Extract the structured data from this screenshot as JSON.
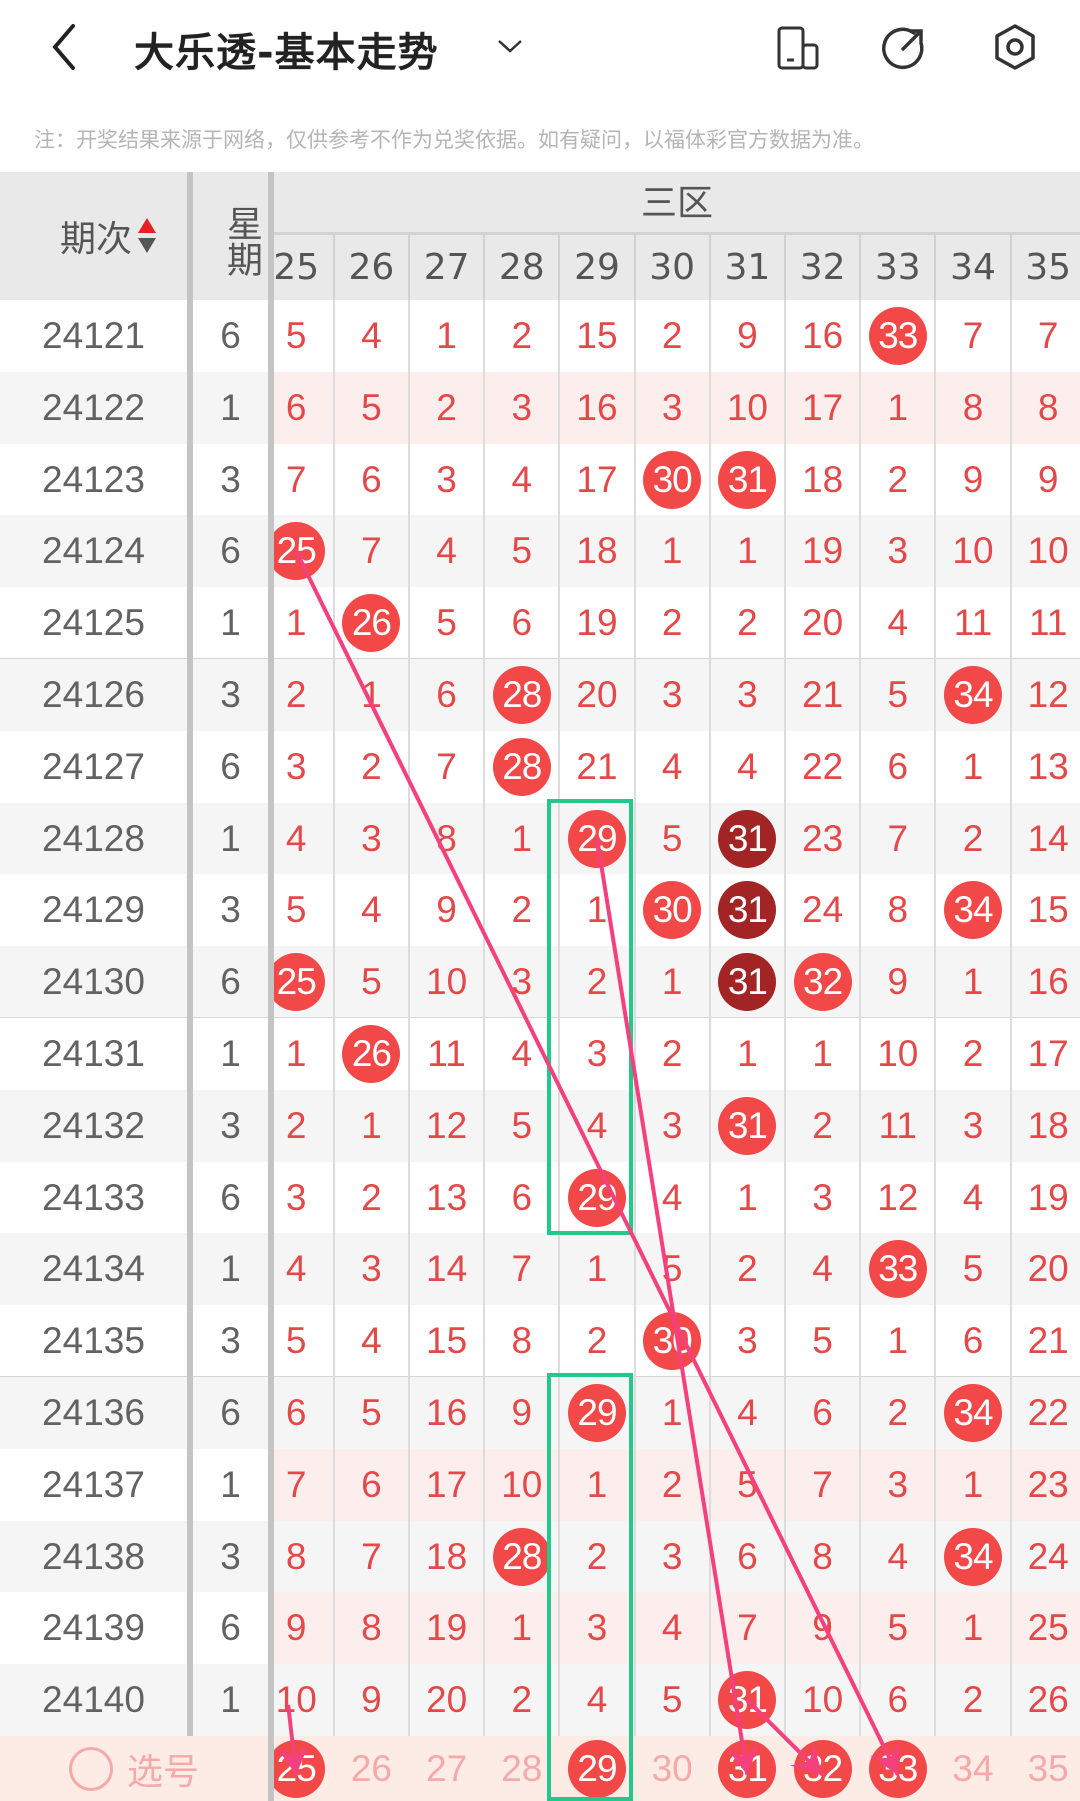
{
  "header": {
    "title": "大乐透-基本走势",
    "back_icon": "chevron-left-icon",
    "dropdown_icon": "chevron-down-icon",
    "actions": [
      {
        "name": "screen-rotate-icon"
      },
      {
        "name": "share-icon"
      },
      {
        "name": "settings-icon"
      }
    ]
  },
  "note": "注：开奖结果来源于网络，仅供参考不作为兑奖依据。如有疑问，以福体彩官方数据为准。",
  "table": {
    "period_header": "期次",
    "week_header": "星期",
    "zone_header": "三区",
    "columns": [
      25,
      26,
      27,
      28,
      29,
      30,
      31,
      32,
      33,
      34,
      35
    ],
    "rows": [
      {
        "period": "24121",
        "week": "6",
        "cells": [
          5,
          4,
          1,
          2,
          15,
          2,
          9,
          16,
          33,
          7,
          7
        ]
      },
      {
        "period": "24122",
        "week": "1",
        "cells": [
          6,
          5,
          2,
          3,
          16,
          3,
          10,
          17,
          1,
          8,
          8
        ],
        "highlight": true
      },
      {
        "period": "24123",
        "week": "3",
        "cells": [
          7,
          6,
          3,
          4,
          17,
          30,
          31,
          18,
          2,
          9,
          9
        ]
      },
      {
        "period": "24124",
        "week": "6",
        "cells": [
          25,
          7,
          4,
          5,
          18,
          1,
          1,
          19,
          3,
          10,
          10
        ]
      },
      {
        "period": "24125",
        "week": "1",
        "cells": [
          1,
          26,
          5,
          6,
          19,
          2,
          2,
          20,
          4,
          11,
          11
        ]
      },
      {
        "period": "24126",
        "week": "3",
        "cells": [
          2,
          1,
          6,
          28,
          20,
          3,
          3,
          21,
          5,
          34,
          12
        ]
      },
      {
        "period": "24127",
        "week": "6",
        "cells": [
          3,
          2,
          7,
          28,
          21,
          4,
          4,
          22,
          6,
          1,
          13
        ]
      },
      {
        "period": "24128",
        "week": "1",
        "cells": [
          4,
          3,
          8,
          1,
          29,
          5,
          31,
          23,
          7,
          2,
          14
        ],
        "dark": [
          31
        ]
      },
      {
        "period": "24129",
        "week": "3",
        "cells": [
          5,
          4,
          9,
          2,
          1,
          30,
          31,
          24,
          8,
          34,
          15
        ],
        "dark": [
          31
        ]
      },
      {
        "period": "24130",
        "week": "6",
        "cells": [
          25,
          5,
          10,
          3,
          2,
          1,
          31,
          32,
          9,
          1,
          16
        ],
        "dark": [
          31
        ]
      },
      {
        "period": "24131",
        "week": "1",
        "cells": [
          1,
          26,
          11,
          4,
          3,
          2,
          1,
          1,
          10,
          2,
          17
        ]
      },
      {
        "period": "24132",
        "week": "3",
        "cells": [
          2,
          1,
          12,
          5,
          4,
          3,
          31,
          2,
          11,
          3,
          18
        ]
      },
      {
        "period": "24133",
        "week": "6",
        "cells": [
          3,
          2,
          13,
          6,
          29,
          4,
          1,
          3,
          12,
          4,
          19
        ]
      },
      {
        "period": "24134",
        "week": "1",
        "cells": [
          4,
          3,
          14,
          7,
          1,
          5,
          2,
          4,
          33,
          5,
          20
        ]
      },
      {
        "period": "24135",
        "week": "3",
        "cells": [
          5,
          4,
          15,
          8,
          2,
          30,
          3,
          5,
          1,
          6,
          21
        ]
      },
      {
        "period": "24136",
        "week": "6",
        "cells": [
          6,
          5,
          16,
          9,
          29,
          1,
          4,
          6,
          2,
          34,
          22
        ]
      },
      {
        "period": "24137",
        "week": "1",
        "cells": [
          7,
          6,
          17,
          10,
          1,
          2,
          5,
          7,
          3,
          1,
          23
        ],
        "highlight": true
      },
      {
        "period": "24138",
        "week": "3",
        "cells": [
          8,
          7,
          18,
          28,
          2,
          3,
          6,
          8,
          4,
          34,
          24
        ]
      },
      {
        "period": "24139",
        "week": "6",
        "cells": [
          9,
          8,
          19,
          1,
          3,
          4,
          7,
          9,
          5,
          1,
          25
        ],
        "highlight": true
      },
      {
        "period": "24140",
        "week": "1",
        "cells": [
          10,
          9,
          20,
          2,
          4,
          5,
          31,
          10,
          6,
          2,
          26
        ]
      }
    ],
    "select_row": {
      "label": "选号",
      "selected": [
        25,
        29,
        31,
        32,
        33
      ]
    },
    "boxes": [
      {
        "column": 29,
        "from": "24128",
        "to": "24133"
      },
      {
        "column": 29,
        "from": "24136",
        "to": "select"
      }
    ],
    "trend_lines": [
      {
        "from": [
          "24124",
          25
        ],
        "to": [
          "select",
          33
        ]
      },
      {
        "from": [
          "24128",
          29
        ],
        "to": [
          "select",
          31
        ]
      },
      {
        "from": [
          "24140",
          31
        ],
        "to": [
          "select",
          32
        ]
      },
      {
        "from": [
          "24139",
          25
        ],
        "to": [
          "select",
          25
        ]
      }
    ]
  },
  "colors": {
    "ball": "#f24848",
    "ball_dark": "#a32424",
    "number": "#e54848",
    "box": "#22c98a",
    "trend": "#f5407e",
    "select_bg": "#fdebe6",
    "highlight_bg": "#fdeeee"
  }
}
